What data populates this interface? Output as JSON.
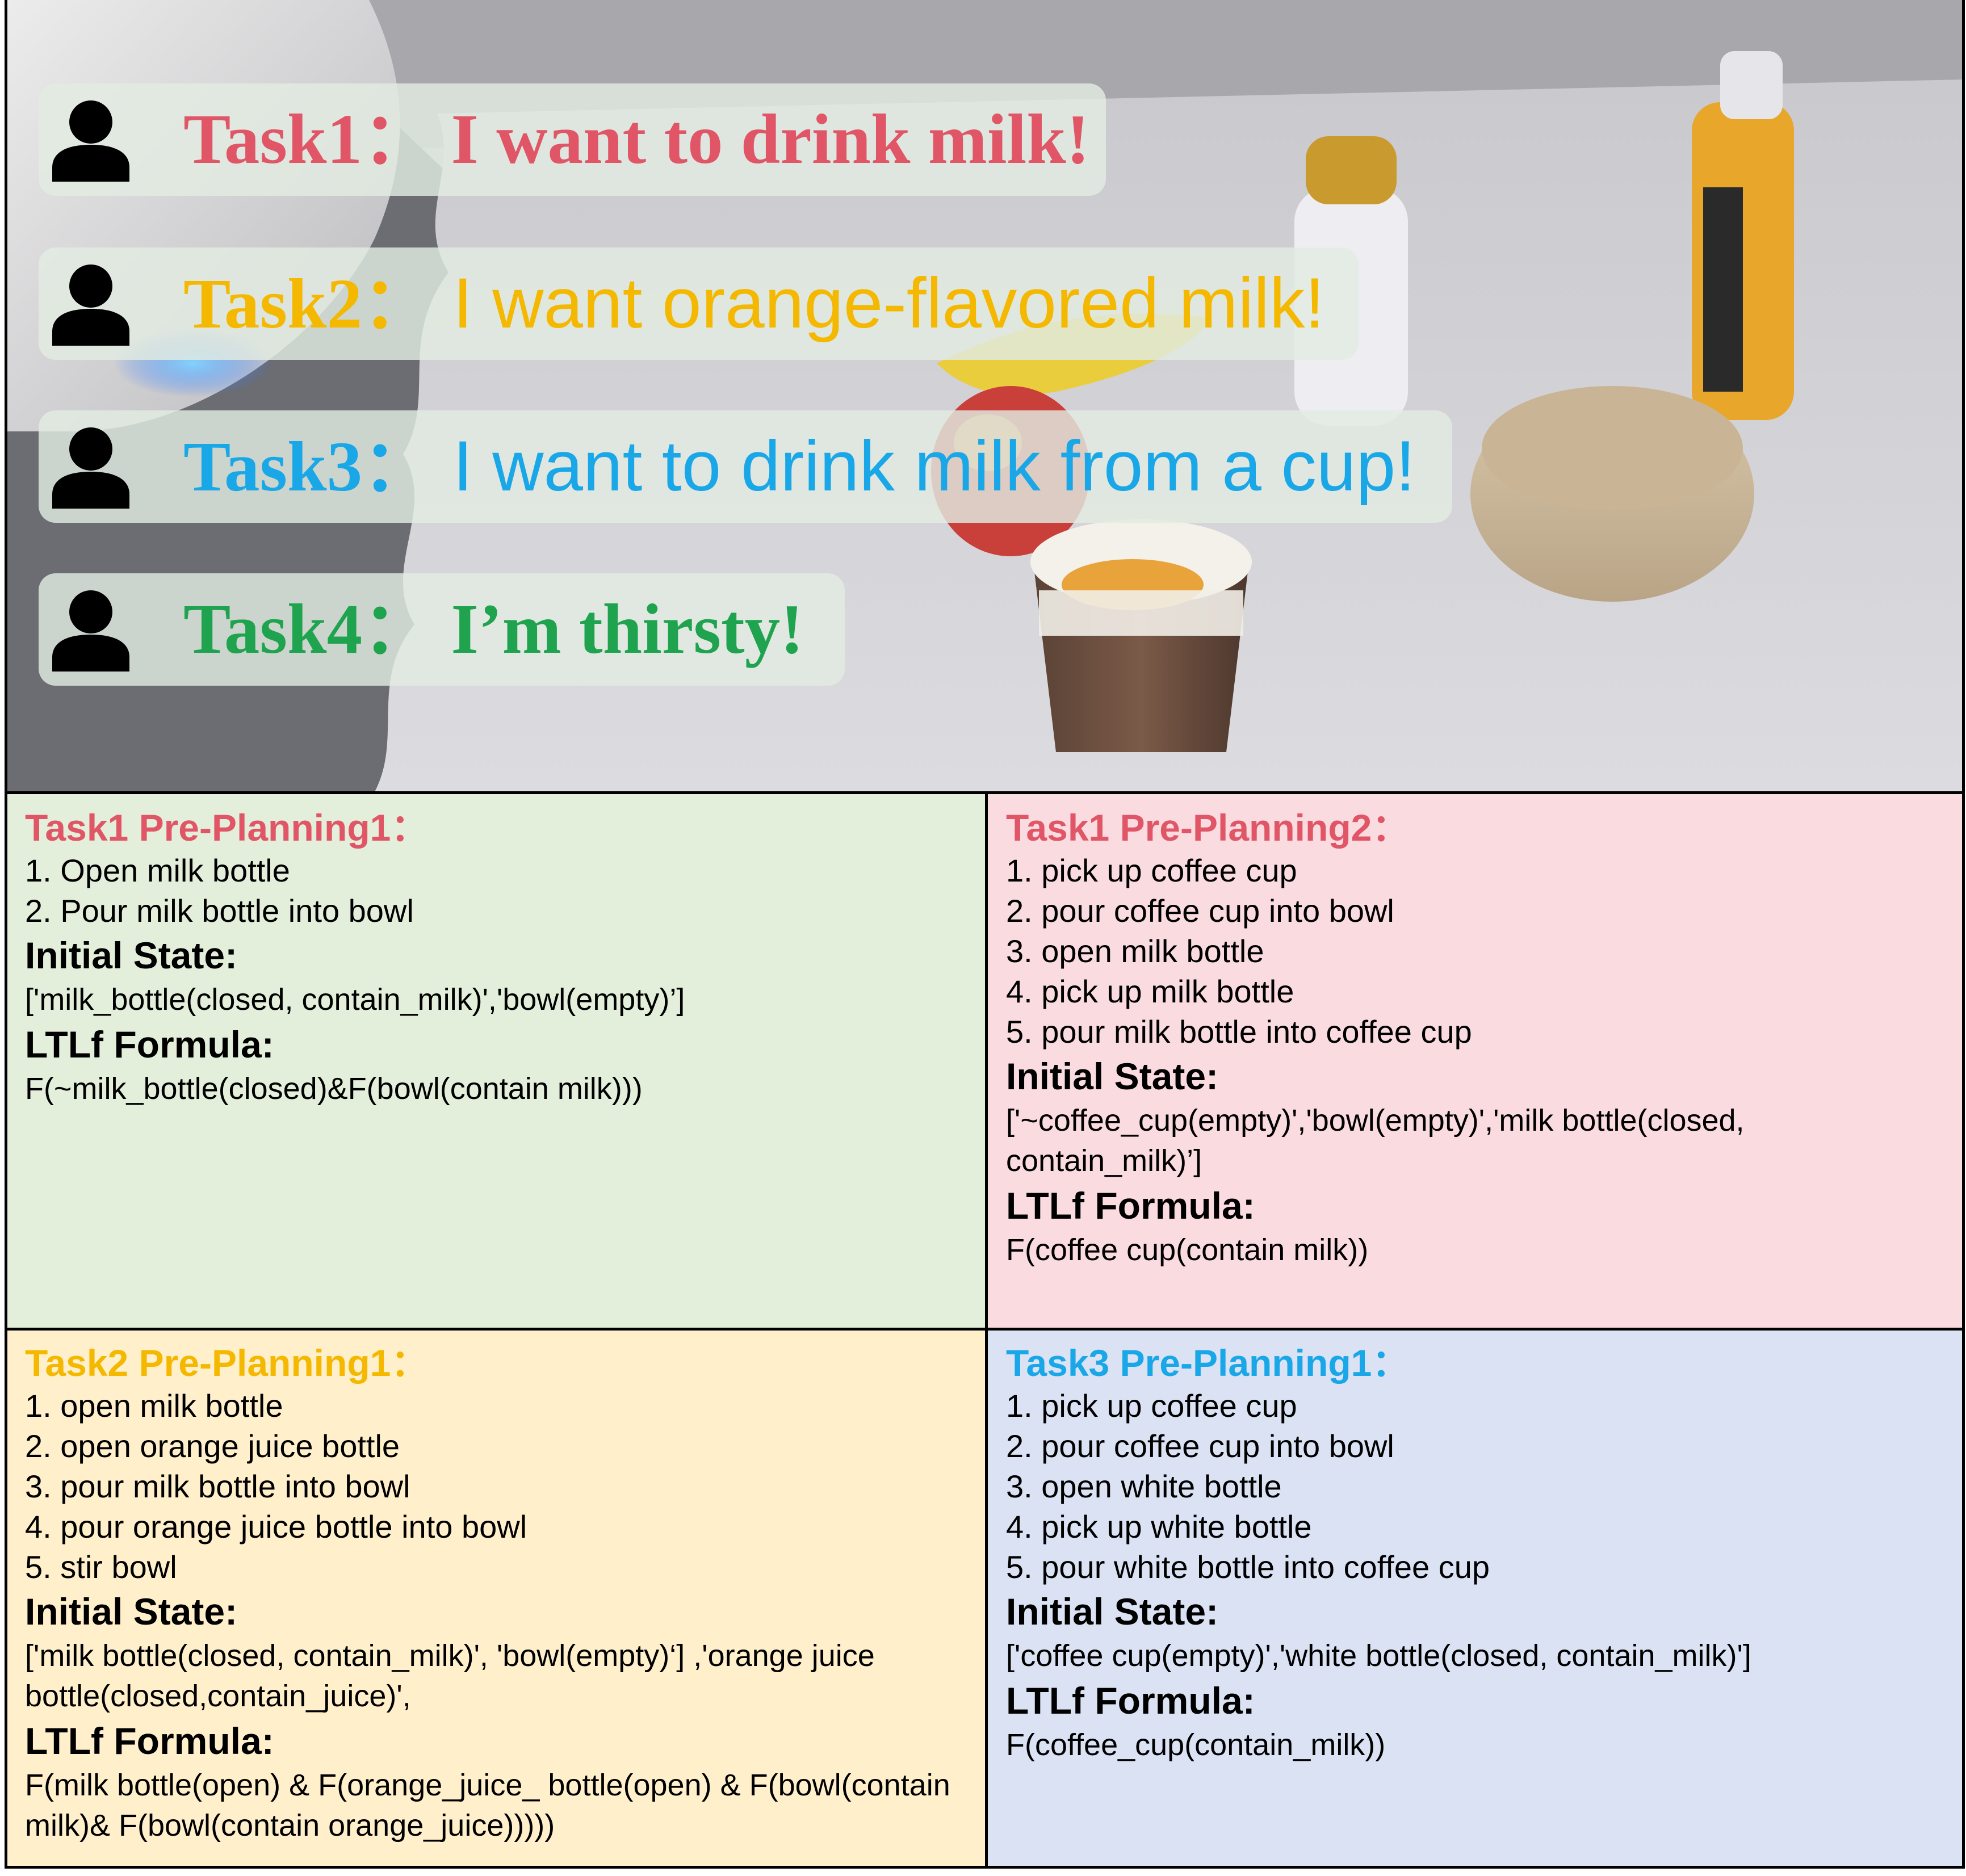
{
  "colors": {
    "task1": "#e05667",
    "task2": "#f5b800",
    "task3": "#1aa7e8",
    "task4": "#1fa34f",
    "panel_green": "#e3efdb",
    "panel_pink": "#f9dbe0",
    "panel_yellow": "#fff0cb",
    "panel_blue": "#dae2f3"
  },
  "bubbles": [
    {
      "icon": "person-icon",
      "label": "Task1",
      "sep": "：",
      "text": "I want to drink milk!"
    },
    {
      "icon": "person-icon",
      "label": "Task2",
      "sep": "：",
      "text": "I want orange-flavored milk!"
    },
    {
      "icon": "person-icon",
      "label": "Task3",
      "sep": "：",
      "text": "I want to drink milk from a cup!"
    },
    {
      "icon": "person-icon",
      "label": "Task4",
      "sep": "：",
      "text": "I’m thirsty!"
    }
  ],
  "panels": [
    {
      "title": "Task1 Pre-Planning1：",
      "steps": [
        "1. Open milk bottle",
        "2. Pour milk bottle into bowl"
      ],
      "initial_state_heading": "Initial State:",
      "initial_state": "['milk_bottle(closed, contain_milk)','bowl(empty)’]",
      "ltlf_heading": "LTLf Formula:",
      "ltlf": "F(~milk_bottle(closed)&F(bowl(contain milk)))"
    },
    {
      "title": "Task1 Pre-Planning2：",
      "steps": [
        "1. pick up coffee cup",
        "2. pour coffee cup into bowl",
        "3. open milk bottle",
        "4. pick up milk bottle",
        "5. pour milk bottle into coffee cup"
      ],
      "initial_state_heading": "Initial State:",
      "initial_state": "['~coffee_cup(empty)','bowl(empty)','milk bottle(closed, contain_milk)’]",
      "ltlf_heading": "LTLf Formula:",
      "ltlf": "F(coffee cup(contain milk))"
    },
    {
      "title": "Task2 Pre-Planning1：",
      "steps": [
        "1. open milk bottle",
        "2. open orange juice bottle",
        "3. pour milk bottle into bowl",
        "4. pour orange juice bottle into bowl",
        "5. stir bowl"
      ],
      "initial_state_heading": "Initial State:",
      "initial_state": "['milk bottle(closed, contain_milk)', 'bowl(empty)‘] ,'orange juice bottle(closed,contain_juice)',",
      "ltlf_heading": "LTLf Formula:",
      "ltlf": "F(milk bottle(open) & F(orange_juice_ bottle(open) & F(bowl(contain milk)& F(bowl(contain orange_juice)))))"
    },
    {
      "title": "Task3 Pre-Planning1：",
      "steps": [
        "1. pick up coffee cup",
        "2. pour coffee cup into bowl",
        "3. open white bottle",
        "4. pick up white bottle",
        "5. pour white bottle into coffee cup"
      ],
      "initial_state_heading": "Initial State:",
      "initial_state": "['coffee cup(empty)','white bottle(closed, contain_milk)']",
      "ltlf_heading": "LTLf Formula:",
      "ltlf": "F(coffee_cup(contain_milk))"
    }
  ]
}
